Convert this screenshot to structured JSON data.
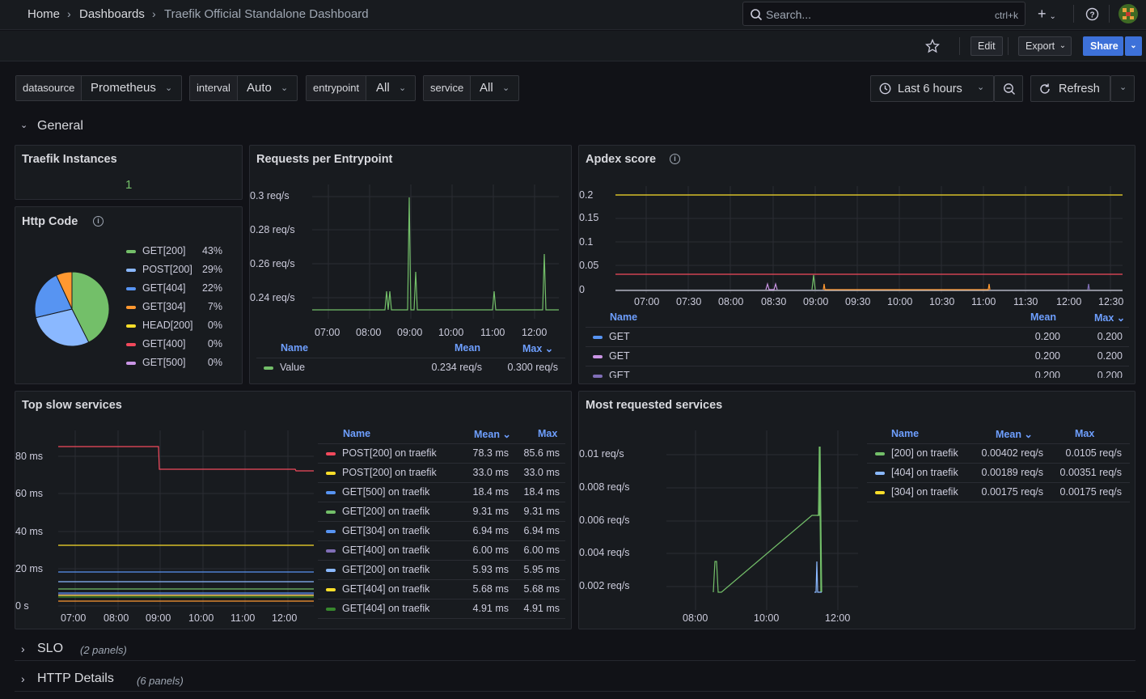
{
  "breadcrumb": {
    "home": "Home",
    "dashboards": "Dashboards",
    "current": "Traefik Official Standalone Dashboard"
  },
  "search": {
    "placeholder": "Search...",
    "shortcut": "ctrl+k"
  },
  "toolbar": {
    "edit": "Edit",
    "export": "Export",
    "share": "Share"
  },
  "variables": [
    {
      "label": "datasource",
      "value": "Prometheus"
    },
    {
      "label": "interval",
      "value": "Auto"
    },
    {
      "label": "entrypoint",
      "value": "All"
    },
    {
      "label": "service",
      "value": "All"
    }
  ],
  "time_range": "Last 6 hours",
  "refresh_label": "Refresh",
  "rows": {
    "general": "General",
    "slo": "SLO",
    "slo_count": "(2 panels)",
    "http": "HTTP Details",
    "http_count": "(6 panels)"
  },
  "panels": {
    "instances": {
      "title": "Traefik Instances",
      "value": "1",
      "color": "#73bf69"
    },
    "http_code": {
      "title": "Http Code",
      "legend": [
        {
          "name": "GET[200]",
          "pct": "43%",
          "color": "#73bf69"
        },
        {
          "name": "POST[200]",
          "pct": "29%",
          "color": "#8ab8ff"
        },
        {
          "name": "GET[404]",
          "pct": "22%",
          "color": "#5794f2"
        },
        {
          "name": "GET[304]",
          "pct": "7%",
          "color": "#ff9830"
        },
        {
          "name": "HEAD[200]",
          "pct": "0%",
          "color": "#fade2a"
        },
        {
          "name": "GET[400]",
          "pct": "0%",
          "color": "#f2495c"
        },
        {
          "name": "GET[500]",
          "pct": "0%",
          "color": "#ca95e5"
        }
      ]
    },
    "requests": {
      "title": "Requests per Entrypoint",
      "yticks": [
        "0.3 req/s",
        "0.28 req/s",
        "0.26 req/s",
        "0.24 req/s"
      ],
      "xticks": [
        "07:00",
        "08:00",
        "09:00",
        "10:00",
        "11:00",
        "12:00"
      ],
      "legend_name": "Name",
      "legend_mean": "Mean",
      "legend_max": "Max",
      "series": [
        {
          "name": "Value",
          "mean": "0.234 req/s",
          "max": "0.300 req/s",
          "color": "#73bf69"
        }
      ]
    },
    "apdex": {
      "title": "Apdex score",
      "yticks": [
        "0.2",
        "0.15",
        "0.1",
        "0.05",
        "0"
      ],
      "xticks": [
        "07:00",
        "07:30",
        "08:00",
        "08:30",
        "09:00",
        "09:30",
        "10:00",
        "10:30",
        "11:00",
        "11:30",
        "12:00",
        "12:30"
      ],
      "legend_name": "Name",
      "legend_mean": "Mean",
      "legend_max": "Max",
      "series": [
        {
          "name": "GET",
          "mean": "0.200",
          "max": "0.200",
          "color": "#5794f2"
        },
        {
          "name": "GET",
          "mean": "0.200",
          "max": "0.200",
          "color": "#ca95e5"
        },
        {
          "name": "GET",
          "mean": "0.200",
          "max": "0.200",
          "color": "#806eb7"
        }
      ]
    },
    "slow": {
      "title": "Top slow services",
      "yticks": [
        "80 ms",
        "60 ms",
        "40 ms",
        "20 ms",
        "0 s"
      ],
      "xticks": [
        "07:00",
        "08:00",
        "09:00",
        "10:00",
        "11:00",
        "12:00"
      ],
      "legend_name": "Name",
      "legend_mean": "Mean",
      "legend_max": "Max",
      "series": [
        {
          "name": "POST[200] on traefik",
          "mean": "78.3 ms",
          "max": "85.6 ms",
          "color": "#f2495c"
        },
        {
          "name": "POST[200] on traefik",
          "mean": "33.0 ms",
          "max": "33.0 ms",
          "color": "#fade2a"
        },
        {
          "name": "GET[500] on traefik",
          "mean": "18.4 ms",
          "max": "18.4 ms",
          "color": "#5794f2"
        },
        {
          "name": "GET[200] on traefik",
          "mean": "9.31 ms",
          "max": "9.31 ms",
          "color": "#73bf69"
        },
        {
          "name": "GET[304] on traefik",
          "mean": "6.94 ms",
          "max": "6.94 ms",
          "color": "#5794f2"
        },
        {
          "name": "GET[400] on traefik",
          "mean": "6.00 ms",
          "max": "6.00 ms",
          "color": "#806eb7"
        },
        {
          "name": "GET[200] on traefik",
          "mean": "5.93 ms",
          "max": "5.95 ms",
          "color": "#8ab8ff"
        },
        {
          "name": "GET[404] on traefik",
          "mean": "5.68 ms",
          "max": "5.68 ms",
          "color": "#fade2a"
        },
        {
          "name": "GET[404] on traefik",
          "mean": "4.91 ms",
          "max": "4.91 ms",
          "color": "#37872d"
        }
      ]
    },
    "most": {
      "title": "Most requested services",
      "yticks": [
        "0.01 req/s",
        "0.008 req/s",
        "0.006 req/s",
        "0.004 req/s",
        "0.002 req/s"
      ],
      "xticks": [
        "08:00",
        "10:00",
        "12:00"
      ],
      "legend_name": "Name",
      "legend_mean": "Mean",
      "legend_max": "Max",
      "series": [
        {
          "name": "[200] on traefik",
          "mean": "0.00402 req/s",
          "max": "0.0105 req/s",
          "color": "#73bf69"
        },
        {
          "name": "[404] on traefik",
          "mean": "0.00189 req/s",
          "max": "0.00351 req/s",
          "color": "#8ab8ff"
        },
        {
          "name": "[304] on traefik",
          "mean": "0.00175 req/s",
          "max": "0.00175 req/s",
          "color": "#fade2a"
        }
      ]
    }
  }
}
